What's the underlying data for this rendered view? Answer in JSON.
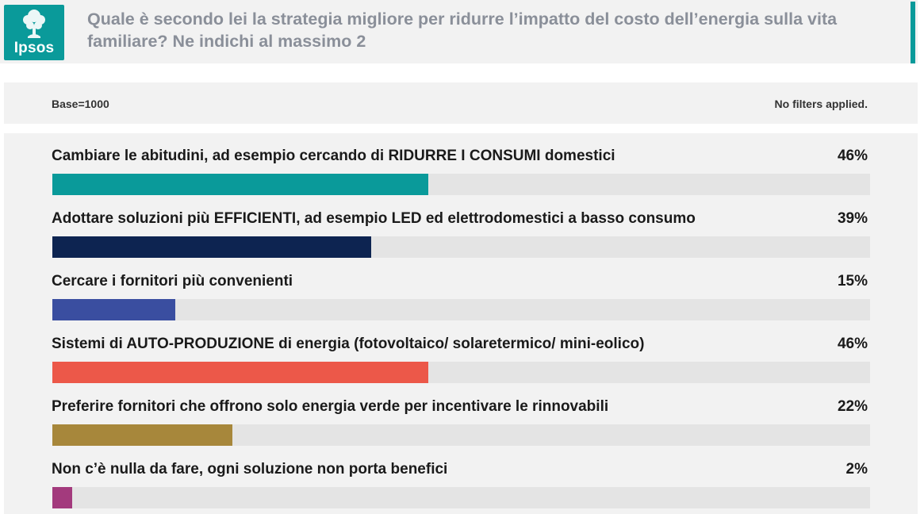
{
  "header": {
    "logo_text": "Ipsos",
    "title": "Quale è secondo lei la strategia migliore per ridurre l’impatto del costo dell’energia sulla vita familiare? Ne indichi al massimo 2"
  },
  "meta": {
    "base": "Base=1000",
    "filters": "No filters applied."
  },
  "colors": {
    "brand": "#0a9a9a",
    "track": "#e4e4e4",
    "title_gray": "#8a8f99"
  },
  "chart_data": {
    "type": "bar",
    "orientation": "horizontal",
    "xlim": [
      0,
      100
    ],
    "categories": [
      "Cambiare le abitudini, ad esempio cercando di RIDURRE I CONSUMI domestici",
      "Adottare soluzioni più EFFICIENTI, ad esempio LED ed elettrodomestici a basso consumo",
      "Cercare i fornitori più convenienti",
      "Sistemi di AUTO-PRODUZIONE di energia (fotovoltaico/ solaretermico/ mini-eolico)",
      "Preferire fornitori che offrono solo energia verde per incentivare le rinnovabili",
      "Non c’è nulla da fare, ogni soluzione non porta benefici"
    ],
    "values": [
      46,
      39,
      15,
      46,
      22,
      2
    ],
    "value_labels": [
      "46%",
      "39%",
      "15%",
      "46%",
      "22%",
      "2%"
    ],
    "bar_colors": [
      "#0a9a9a",
      "#0d2451",
      "#3a4ea0",
      "#ec5849",
      "#a7873b",
      "#a33a7d"
    ]
  }
}
